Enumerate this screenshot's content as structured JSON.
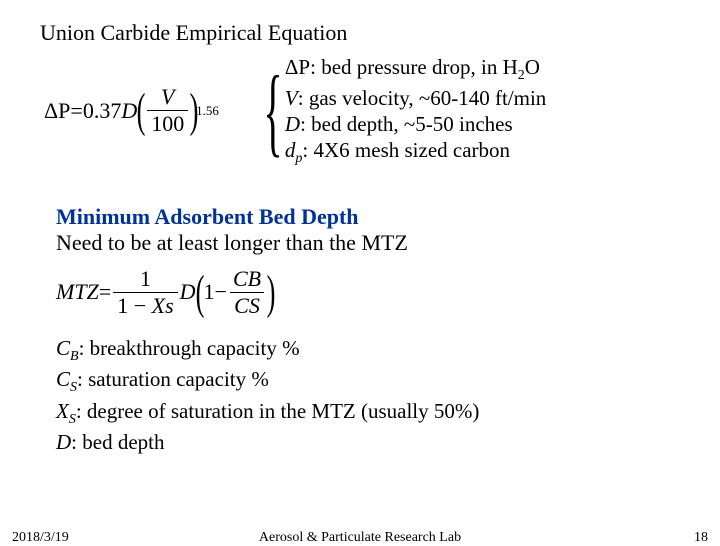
{
  "title": "Union Carbide Empirical Equation",
  "eq1": {
    "lhs_sym": "ΔP",
    "eq": " = ",
    "coef": "0.37",
    "D": "D",
    "frac_num": "V",
    "frac_den": "100",
    "exp": "1.56"
  },
  "defs1": {
    "dp_sym": "ΔP",
    "dp_txt": ": bed pressure drop, in H",
    "dp_sub": "2",
    "dp_tail": "O",
    "v_sym": "V",
    "v_txt": ": gas velocity, ~60-140 ft/min",
    "d_sym": "D",
    "d_txt": ": bed depth, ~5-50 inches",
    "dpart_sym": "d",
    "dpart_sub": "p",
    "dpart_txt": ": 4X6 mesh sized carbon"
  },
  "sec2_title": "Minimum Adsorbent Bed Depth",
  "sec2_note": "Need to be at least longer than the MTZ",
  "eq2": {
    "lhs": "MTZ",
    "eq": " = ",
    "one_a": "1",
    "one_b": "1",
    "minus": " − ",
    "Xs": "X",
    "Xs_sub": "s",
    "D": "D",
    "one_c": "1",
    "minus2": " − ",
    "CB": "C",
    "CB_sub": "B",
    "CS": "C",
    "CS_sub": "S"
  },
  "defs2": {
    "cb_sym": "C",
    "cb_sub": "B",
    "cb_txt": ": breakthrough capacity %",
    "cs_sym": "C",
    "cs_sub": "S",
    "cs_txt": ": saturation capacity %",
    "xs_sym": "X",
    "xs_sub": "S",
    "xs_txt": ": degree of saturation in the MTZ (usually 50%)",
    "d_sym": "D",
    "d_txt": ": bed depth"
  },
  "footer": {
    "date": "2018/3/19",
    "lab": "Aerosol & Particulate Research Lab",
    "page": "18"
  }
}
